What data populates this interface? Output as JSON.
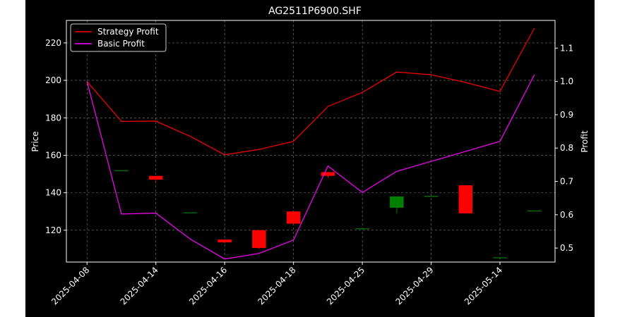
{
  "chart_data": {
    "type": "candlestick+line",
    "title": "AG2511P6900.SHF",
    "ylabel_left": "Price",
    "ylabel_right": "Profit",
    "ylim_left": [
      103,
      232
    ],
    "ylim_right": [
      0.458,
      1.183
    ],
    "yticks_left": [
      120,
      140,
      160,
      180,
      200,
      220
    ],
    "yticks_right": [
      0.5,
      0.6,
      0.7,
      0.8,
      0.9,
      1.0,
      1.1
    ],
    "x_tick_labels": [
      "2025-04-08",
      "2025-04-14",
      "2025-04-16",
      "2025-04-18",
      "2025-04-25",
      "2025-04-29",
      "2025-05-14"
    ],
    "x_tick_positions": [
      0,
      2,
      4,
      6,
      8,
      10,
      12
    ],
    "grid": true,
    "legend_position": "top-left",
    "candles": [
      {
        "x": 1,
        "open": 152,
        "high": 152,
        "low": 152,
        "close": 152
      },
      {
        "x": 2,
        "open": 149,
        "high": 149,
        "low": 146,
        "close": 147
      },
      {
        "x": 3,
        "open": 129.5,
        "high": 129.5,
        "low": 129.5,
        "close": 129.5
      },
      {
        "x": 4,
        "open": 115,
        "high": 115,
        "low": 113,
        "close": 113.5
      },
      {
        "x": 5,
        "open": 120,
        "high": 120,
        "low": 110,
        "close": 110.5
      },
      {
        "x": 6,
        "open": 130,
        "high": 130,
        "low": 123,
        "close": 123.5
      },
      {
        "x": 7,
        "open": 151,
        "high": 151,
        "low": 148,
        "close": 149
      },
      {
        "x": 8,
        "open": 121,
        "high": 121,
        "low": 121,
        "close": 121
      },
      {
        "x": 9,
        "open": 132,
        "high": 138,
        "low": 129,
        "close": 138
      },
      {
        "x": 10,
        "open": 138.3,
        "high": 138.3,
        "low": 138.3,
        "close": 138.3
      },
      {
        "x": 11,
        "open": 144,
        "high": 144,
        "low": 129,
        "close": 129
      },
      {
        "x": 12,
        "open": 105.5,
        "high": 105.5,
        "low": 105.5,
        "close": 105.5
      },
      {
        "x": 13,
        "open": 130.5,
        "high": 130.5,
        "low": 130.5,
        "close": 130.5
      }
    ],
    "series": [
      {
        "name": "Strategy Profit",
        "color": "#ff0000",
        "x": [
          0,
          1,
          2,
          3,
          4,
          5,
          6,
          7,
          8,
          9,
          10,
          11,
          12,
          13
        ],
        "values": [
          1.0,
          0.88,
          0.881,
          0.835,
          0.78,
          0.796,
          0.82,
          0.925,
          0.967,
          1.028,
          1.02,
          0.997,
          0.97,
          1.16
        ]
      },
      {
        "name": "Basic Profit",
        "color": "#ff00ff",
        "x": [
          0,
          1,
          2,
          3,
          4,
          5,
          6,
          7,
          8,
          9,
          10,
          11,
          12,
          13
        ],
        "values": [
          1.0,
          0.602,
          0.605,
          0.527,
          0.467,
          0.484,
          0.524,
          0.746,
          0.667,
          0.73,
          0.76,
          0.79,
          0.82,
          1.02
        ]
      }
    ],
    "colors": {
      "up": "#008000",
      "down": "#ff0000",
      "grid": "#808080",
      "axis": "#ffffff"
    }
  }
}
